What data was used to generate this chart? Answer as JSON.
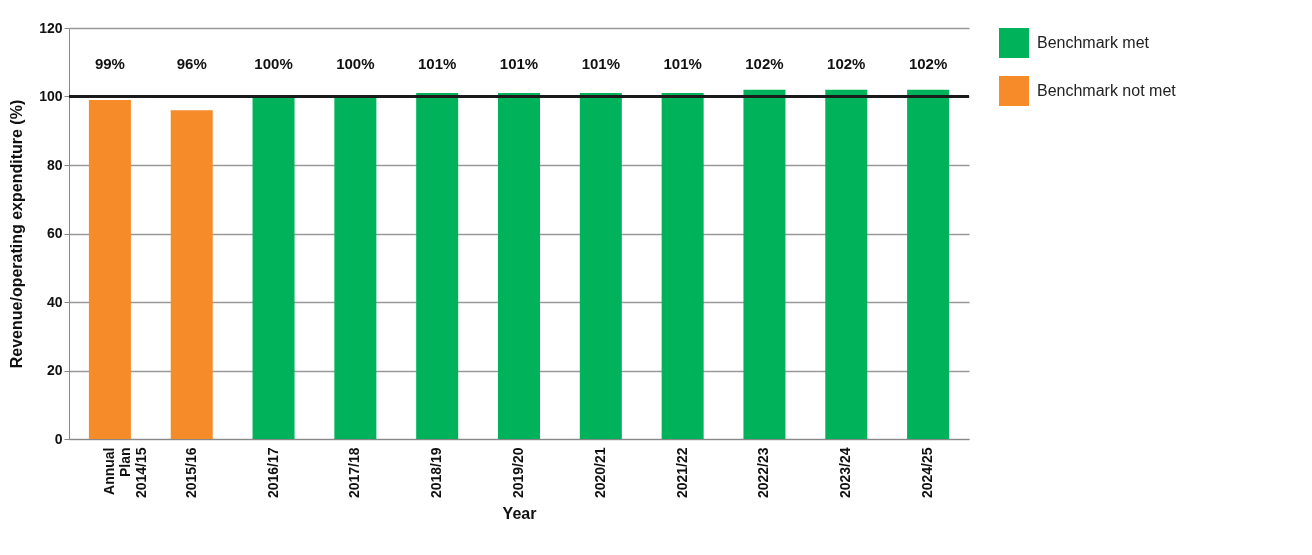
{
  "chart_data": {
    "type": "bar",
    "xlabel": "Year",
    "ylabel": "Revenue/operating expenditure (%)",
    "categories": [
      "Annual Plan 2014/15",
      "2015/16",
      "2016/17",
      "2017/18",
      "2018/19",
      "2019/20",
      "2020/21",
      "2021/22",
      "2022/23",
      "2023/24",
      "2024/25"
    ],
    "series": [
      {
        "name": "Benchmark met",
        "color": "#00b259",
        "values": [
          null,
          null,
          100,
          100,
          101,
          101,
          101,
          101,
          102,
          102,
          102
        ],
        "value_labels": [
          null,
          null,
          "100%",
          "100%",
          "101%",
          "101%",
          "101%",
          "101%",
          "102%",
          "102%",
          "102%"
        ]
      },
      {
        "name": "Benchmark not met",
        "color": "#f68b29",
        "values": [
          99,
          96,
          null,
          null,
          null,
          null,
          null,
          null,
          null,
          null,
          null
        ],
        "value_labels": [
          "99%",
          "96%",
          null,
          null,
          null,
          null,
          null,
          null,
          null,
          null,
          null
        ]
      }
    ],
    "ylim": [
      0,
      120
    ],
    "yticks": [
      0,
      20,
      40,
      60,
      80,
      100,
      120
    ],
    "grid": "y",
    "legend": "top right",
    "ref_lines": [
      {
        "axis": "y",
        "value": 100,
        "color": "#1a1a1a"
      }
    ]
  }
}
